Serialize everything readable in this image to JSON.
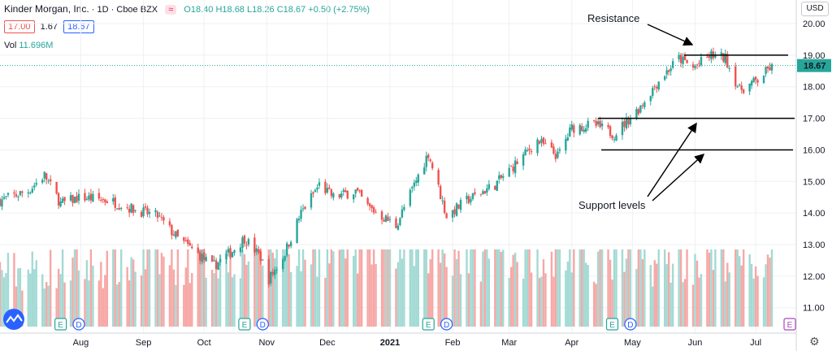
{
  "header": {
    "symbol": "Kinder Morgan, Inc.",
    "interval": "1D",
    "exchange": "Cboe BZX",
    "compare_icon": "≈",
    "open": "O18.40",
    "high": "H18.68",
    "low": "L18.26",
    "close": "C18.67",
    "change": "+0.50 (+2.75%)",
    "sell_price": "17.00",
    "spread": "1.67",
    "buy_price": "18.67",
    "volume_label": "Vol",
    "volume_value": "11.696M"
  },
  "toolbar": {
    "currency": "USD",
    "settings_icon": "gear-icon",
    "logo_icon": "tradingview-cloud-icon"
  },
  "chart_data": {
    "type": "candlestick",
    "y_axis_ticks": [
      "20.00",
      "19.00",
      "18.00",
      "17.00",
      "16.00",
      "15.00",
      "14.00",
      "13.00",
      "12.00",
      "11.00"
    ],
    "ylim": [
      10.5,
      20.2
    ],
    "last_price": "18.67",
    "x_axis_ticks": [
      "Aug",
      "Sep",
      "Oct",
      "Nov",
      "Dec",
      "2021",
      "Feb",
      "Mar",
      "Apr",
      "May",
      "Jun",
      "Jul"
    ],
    "grid": true,
    "annotations": {
      "resistance": {
        "label": "Resistance",
        "level": 19.0
      },
      "support": {
        "label": "Support levels",
        "levels": [
          17.0,
          16.0
        ]
      }
    },
    "event_markers": [
      {
        "type": "E",
        "date": "2020-07-22"
      },
      {
        "type": "D",
        "date": "2020-07-31"
      },
      {
        "type": "E",
        "date": "2020-10-21"
      },
      {
        "type": "D",
        "date": "2020-10-30"
      },
      {
        "type": "E",
        "date": "2021-01-20"
      },
      {
        "type": "D",
        "date": "2021-01-29"
      },
      {
        "type": "E",
        "date": "2021-04-21"
      },
      {
        "type": "D",
        "date": "2021-04-30"
      }
    ],
    "future_event": {
      "type": "E"
    },
    "price_path": [
      [
        "2020-06-22",
        14.4
      ],
      [
        "2020-07-06",
        14.7
      ],
      [
        "2020-07-14",
        15.2
      ],
      [
        "2020-07-22",
        14.3
      ],
      [
        "2020-08-01",
        14.5
      ],
      [
        "2020-08-15",
        14.4
      ],
      [
        "2020-08-28",
        14.1
      ],
      [
        "2020-09-08",
        13.9
      ],
      [
        "2020-09-18",
        13.2
      ],
      [
        "2020-09-30",
        12.6
      ],
      [
        "2020-10-05",
        12.3
      ],
      [
        "2020-10-15",
        12.8
      ],
      [
        "2020-10-21",
        13.2
      ],
      [
        "2020-10-29",
        12.6
      ],
      [
        "2020-11-02",
        11.9
      ],
      [
        "2020-11-09",
        12.6
      ],
      [
        "2020-11-18",
        14.0
      ],
      [
        "2020-11-27",
        14.9
      ],
      [
        "2020-12-04",
        14.5
      ],
      [
        "2020-12-15",
        14.7
      ],
      [
        "2020-12-21",
        14.2
      ],
      [
        "2021-01-04",
        13.6
      ],
      [
        "2021-01-11",
        14.6
      ],
      [
        "2021-01-20",
        15.9
      ],
      [
        "2021-01-29",
        13.9
      ],
      [
        "2021-02-08",
        14.4
      ],
      [
        "2021-02-22",
        14.9
      ],
      [
        "2021-03-08",
        15.8
      ],
      [
        "2021-03-15",
        16.3
      ],
      [
        "2021-03-25",
        15.8
      ],
      [
        "2021-04-01",
        16.7
      ],
      [
        "2021-04-12",
        16.8
      ],
      [
        "2021-04-22",
        16.5
      ],
      [
        "2021-05-04",
        17.3
      ],
      [
        "2021-05-14",
        18.2
      ],
      [
        "2021-05-24",
        18.9
      ],
      [
        "2021-05-31",
        18.6
      ],
      [
        "2021-06-09",
        19.0
      ],
      [
        "2021-06-16",
        18.9
      ],
      [
        "2021-06-23",
        17.9
      ],
      [
        "2021-07-02",
        18.2
      ],
      [
        "2021-07-08",
        18.6
      ]
    ],
    "volume_path": [
      [
        "2020-06-22",
        0.28
      ],
      [
        "2020-07-22",
        0.3
      ],
      [
        "2020-08-15",
        0.32
      ],
      [
        "2020-09-08",
        0.34
      ],
      [
        "2020-10-05",
        0.36
      ],
      [
        "2020-11-02",
        0.42
      ],
      [
        "2020-11-27",
        0.4
      ],
      [
        "2020-12-21",
        0.44
      ],
      [
        "2021-01-11",
        0.42
      ],
      [
        "2021-02-08",
        0.38
      ],
      [
        "2021-03-08",
        0.4
      ],
      [
        "2021-04-12",
        0.36
      ],
      [
        "2021-05-14",
        0.34
      ],
      [
        "2021-06-16",
        0.36
      ],
      [
        "2021-07-08",
        0.3
      ]
    ]
  }
}
